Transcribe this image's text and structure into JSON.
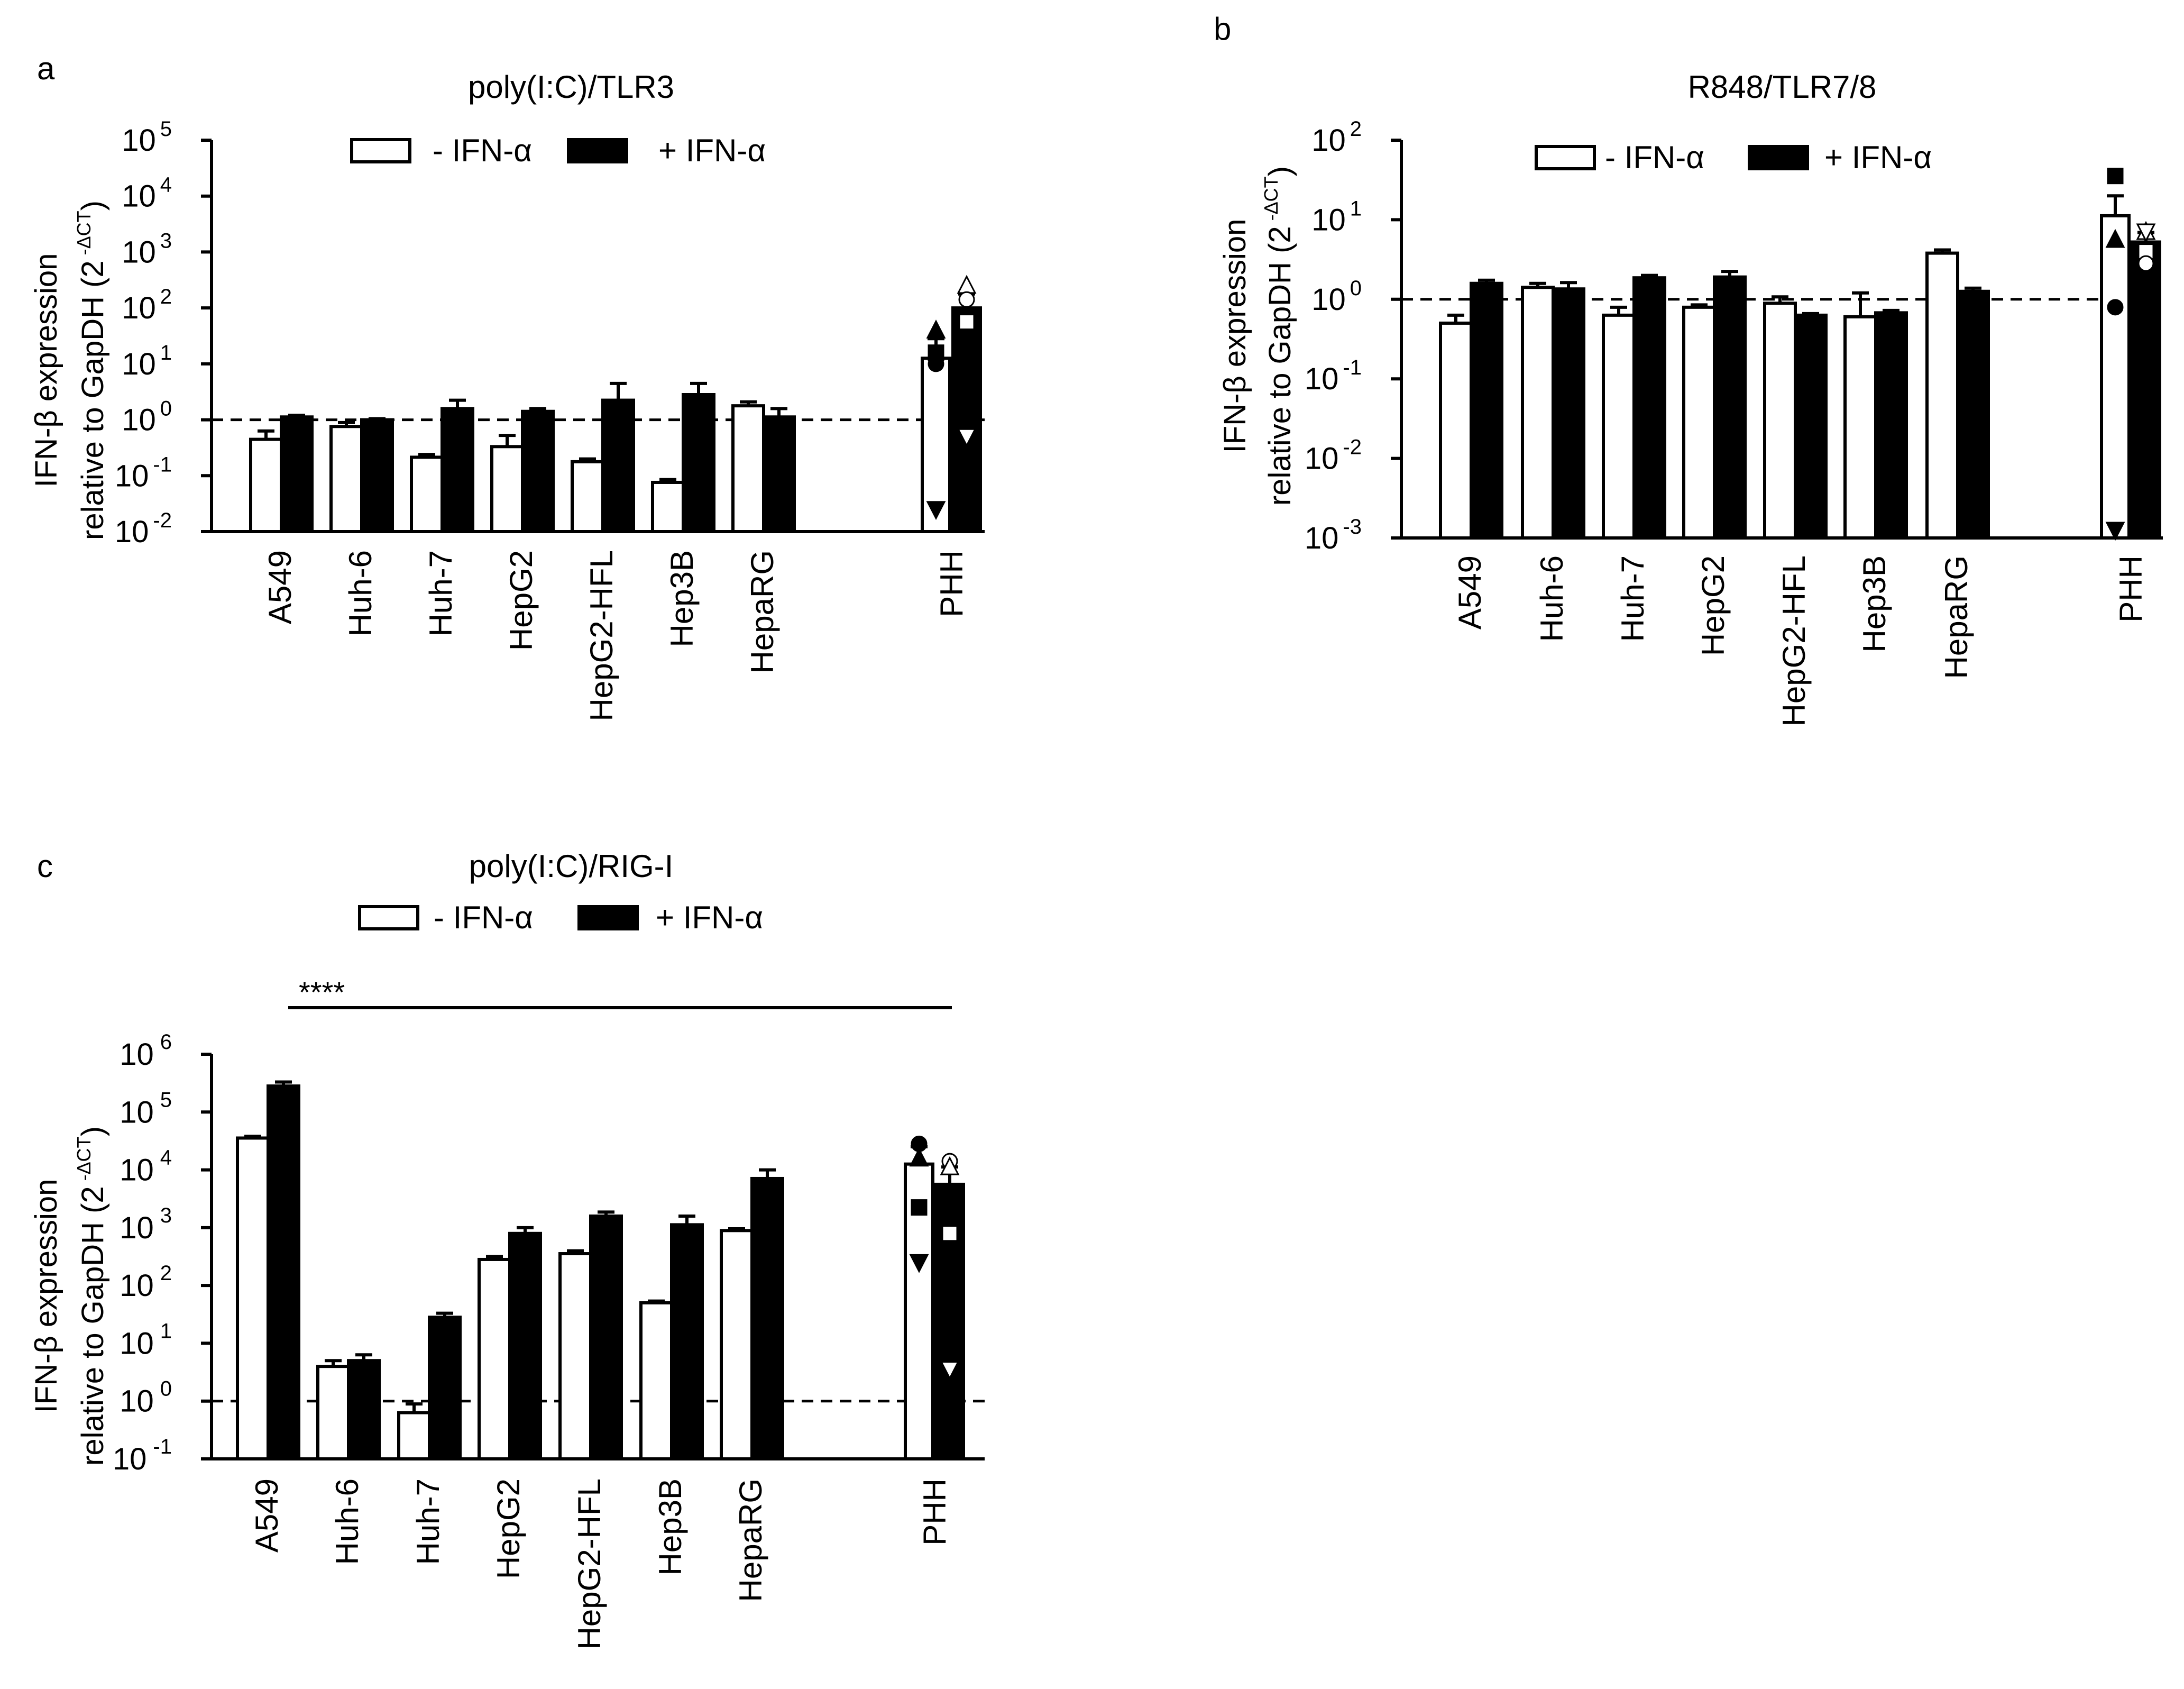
{
  "figure": {
    "bar_fill_minus": "#ffffff",
    "bar_fill_plus": "#000000"
  },
  "chart_data": [
    {
      "id": "a",
      "panel_label": "a",
      "type": "bar",
      "scale": "log10",
      "title": "poly(I:C)/TLR3",
      "ylabel_line1": "IFN-β expression",
      "ylabel_line2_prefix": "relative to GapDH (2",
      "ylabel_sup": "-ΔCT",
      "ylabel_suffix": ")",
      "ytick_base": "10",
      "ytick_exponents": [
        "-2",
        "-1",
        "0",
        "1",
        "2",
        "3",
        "4",
        "5"
      ],
      "ylim_log": [
        -2,
        5
      ],
      "reference_line_log": 0,
      "categories": [
        "A549",
        "Huh-6",
        "Huh-7",
        "HepG2",
        "HepG2-HFL",
        "Hep3B",
        "HepaRG",
        "PHH"
      ],
      "legend": [
        "- IFN-α",
        "+ IFN-α"
      ],
      "series": [
        {
          "name": "- IFN-α",
          "values_log": [
            -0.35,
            -0.12,
            -0.67,
            -0.48,
            -0.75,
            -1.12,
            0.25,
            1.1
          ],
          "err_log": [
            0.15,
            0.07,
            0.05,
            0.2,
            0.05,
            0.05,
            0.07,
            0.35
          ]
        },
        {
          "name": "+ IFN-α",
          "values_log": [
            0.05,
            0.0,
            0.2,
            0.15,
            0.35,
            0.45,
            0.05,
            2.0
          ],
          "err_log": [
            0.03,
            0.02,
            0.15,
            0.05,
            0.3,
            0.2,
            0.15,
            0.25
          ]
        }
      ],
      "scatter_points": [
        {
          "series": 0,
          "marker": "triangle-up",
          "value_log": 1.6
        },
        {
          "series": 0,
          "marker": "square",
          "value_log": 1.2
        },
        {
          "series": 0,
          "marker": "circle",
          "value_log": 1.0
        },
        {
          "series": 0,
          "marker": "triangle-down",
          "value_log": -1.6
        },
        {
          "series": 1,
          "marker": "triangle-up",
          "value_log": 2.4
        },
        {
          "series": 1,
          "marker": "circle",
          "value_log": 2.15
        },
        {
          "series": 1,
          "marker": "square",
          "value_log": 1.75
        },
        {
          "series": 1,
          "marker": "triangle-down",
          "value_log": -0.3
        }
      ]
    },
    {
      "id": "b",
      "panel_label": "b",
      "type": "bar",
      "scale": "log10",
      "title": "R848/TLR7/8",
      "ylabel_line1": "IFN-β expression",
      "ylabel_line2_prefix": "relative to GapDH (2",
      "ylabel_sup": "-ΔCT",
      "ylabel_suffix": ")",
      "ytick_base": "10",
      "ytick_exponents": [
        "-3",
        "-2",
        "-1",
        "0",
        "1",
        "2"
      ],
      "ylim_log": [
        -3,
        2
      ],
      "reference_line_log": 0,
      "categories": [
        "A549",
        "Huh-6",
        "Huh-7",
        "HepG2",
        "HepG2-HFL",
        "Hep3B",
        "HepaRG",
        "PHH"
      ],
      "legend": [
        "- IFN-α",
        "+ IFN-α"
      ],
      "series": [
        {
          "name": "- IFN-α",
          "values_log": [
            -0.3,
            0.15,
            -0.2,
            -0.1,
            -0.05,
            -0.22,
            0.58,
            1.05
          ],
          "err_log": [
            0.1,
            0.05,
            0.1,
            0.03,
            0.08,
            0.3,
            0.04,
            0.25
          ]
        },
        {
          "name": "+ IFN-α",
          "values_log": [
            0.2,
            0.13,
            0.27,
            0.28,
            -0.2,
            -0.17,
            0.1,
            0.72
          ],
          "err_log": [
            0.04,
            0.08,
            0.03,
            0.07,
            0.02,
            0.03,
            0.04,
            0.12
          ]
        }
      ],
      "scatter_points": [
        {
          "series": 0,
          "marker": "square",
          "value_log": 1.55
        },
        {
          "series": 0,
          "marker": "triangle-up",
          "value_log": 0.75
        },
        {
          "series": 0,
          "marker": "circle",
          "value_log": -0.1
        },
        {
          "series": 0,
          "marker": "triangle-down",
          "value_log": -2.9
        },
        {
          "series": 1,
          "marker": "triangle-up",
          "value_log": 0.85
        },
        {
          "series": 1,
          "marker": "triangle-down",
          "value_log": 0.85
        },
        {
          "series": 1,
          "marker": "square",
          "value_log": 0.6
        },
        {
          "series": 1,
          "marker": "circle",
          "value_log": 0.45
        }
      ]
    },
    {
      "id": "c",
      "panel_label": "c",
      "type": "bar",
      "scale": "log10",
      "title": "poly(I:C)/RIG-I",
      "ylabel_line1": "IFN-β expression",
      "ylabel_line2_prefix": "relative to GapDH (2",
      "ylabel_sup": "-ΔCT",
      "ylabel_suffix": ")",
      "ytick_base": "10",
      "ytick_exponents": [
        "-1",
        "0",
        "1",
        "2",
        "3",
        "4",
        "5",
        "6"
      ],
      "ylim_log": [
        -1,
        6
      ],
      "reference_line_log": 0,
      "significance": "****",
      "categories": [
        "A549",
        "Huh-6",
        "Huh-7",
        "HepG2",
        "HepG2-HFL",
        "Hep3B",
        "HepaRG",
        "PHH"
      ],
      "legend": [
        "- IFN-α",
        "+ IFN-α"
      ],
      "series": [
        {
          "name": "- IFN-α",
          "values_log": [
            4.55,
            0.6,
            -0.2,
            2.45,
            2.55,
            1.7,
            2.95,
            4.1
          ],
          "err_log": [
            0.03,
            0.1,
            0.15,
            0.05,
            0.05,
            0.03,
            0.03,
            0.3
          ]
        },
        {
          "name": "+ IFN-α",
          "values_log": [
            5.45,
            0.7,
            1.45,
            2.9,
            3.2,
            3.05,
            3.85,
            3.75
          ],
          "err_log": [
            0.07,
            0.1,
            0.07,
            0.1,
            0.07,
            0.15,
            0.15,
            0.3
          ]
        }
      ],
      "scatter_points": [
        {
          "series": 0,
          "marker": "circle",
          "value_log": 4.45
        },
        {
          "series": 0,
          "marker": "triangle-up",
          "value_log": 4.2
        },
        {
          "series": 0,
          "marker": "square",
          "value_log": 3.35
        },
        {
          "series": 0,
          "marker": "triangle-down",
          "value_log": 2.4
        },
        {
          "series": 1,
          "marker": "circle",
          "value_log": 4.15
        },
        {
          "series": 1,
          "marker": "triangle-up",
          "value_log": 4.05
        },
        {
          "series": 1,
          "marker": "square",
          "value_log": 2.9
        },
        {
          "series": 1,
          "marker": "triangle-down",
          "value_log": 0.55
        }
      ]
    }
  ]
}
